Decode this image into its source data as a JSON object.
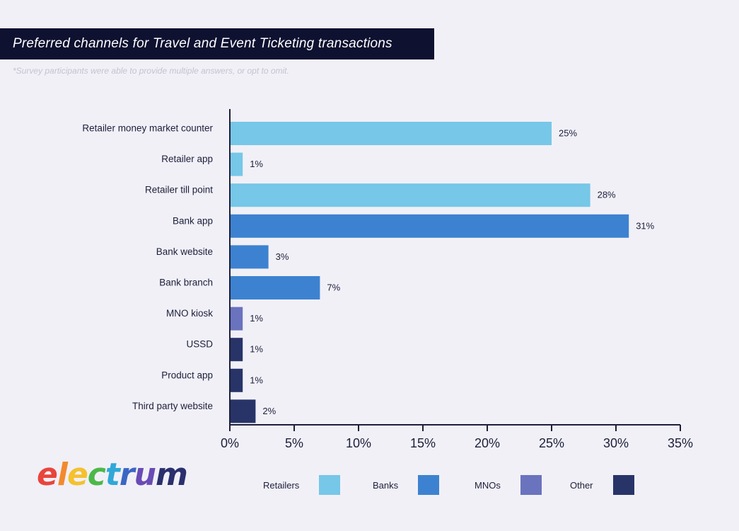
{
  "header": {
    "title": "Preferred channels for Travel and Event Ticketing transactions",
    "subtitle": "*Survey participants were able to provide multiple answers, or opt to omit."
  },
  "brand": {
    "logo_letters": [
      "e",
      "l",
      "e",
      "c",
      "t",
      "r",
      "u",
      "m"
    ],
    "logo_colors": [
      "#e8453c",
      "#f28a2e",
      "#f4c12f",
      "#4cb848",
      "#2fa8d8",
      "#3b66c4",
      "#6a4bb5",
      "#2a2f6e"
    ]
  },
  "legend": [
    {
      "label": "Retailers",
      "color": "#76c7e8"
    },
    {
      "label": "Banks",
      "color": "#3d82d0"
    },
    {
      "label": "MNOs",
      "color": "#6a73bd"
    },
    {
      "label": "Other",
      "color": "#283468"
    }
  ],
  "chart_data": {
    "type": "bar",
    "orientation": "horizontal",
    "categories": [
      "Retailer money market counter",
      "Retailer app",
      "Retailer till point",
      "Bank app",
      "Bank website",
      "Bank branch",
      "MNO kiosk",
      "USSD",
      "Product app",
      "Third party website"
    ],
    "values": [
      25,
      1,
      28,
      31,
      3,
      7,
      1,
      1,
      1,
      2
    ],
    "value_labels": [
      "25%",
      "1%",
      "28%",
      "31%",
      "3%",
      "7%",
      "1%",
      "1%",
      "1%",
      "2%"
    ],
    "groups": [
      "Retailers",
      "Retailers",
      "Retailers",
      "Banks",
      "Banks",
      "Banks",
      "MNOs",
      "Other",
      "Other",
      "Other"
    ],
    "xlim": [
      0,
      35
    ],
    "x_ticks": [
      0,
      5,
      10,
      15,
      20,
      25,
      30,
      35
    ],
    "x_tick_labels": [
      "0%",
      "5%",
      "10%",
      "15%",
      "20%",
      "25%",
      "30%",
      "35%"
    ],
    "grid": false,
    "legend_position": "bottom"
  }
}
